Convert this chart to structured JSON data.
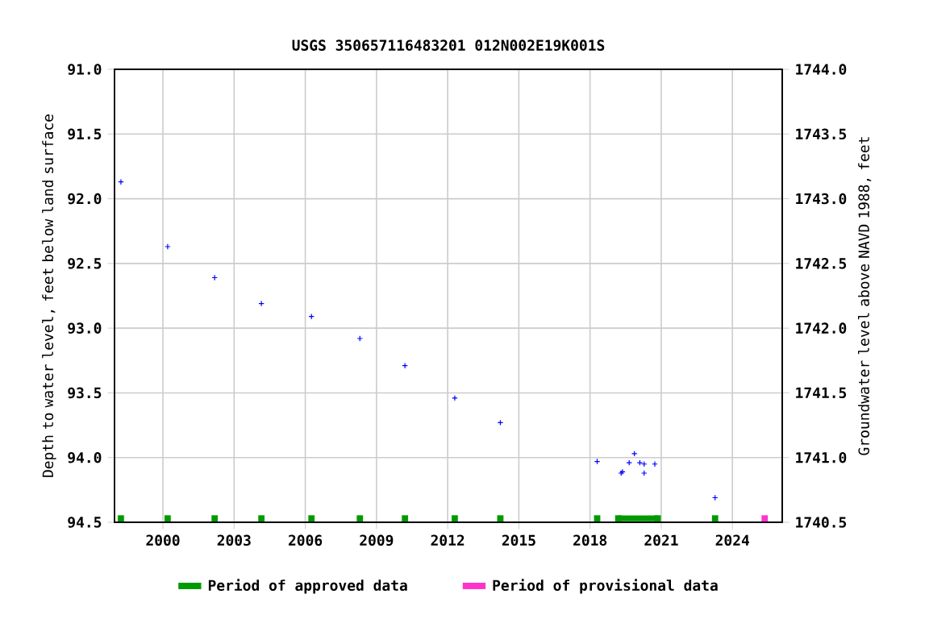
{
  "chart_data": {
    "type": "scatter",
    "title": "USGS 350657116483201 012N002E19K001S",
    "ylabel": "Depth to water level, feet below land surface",
    "y2label": "Groundwater level above NAVD 1988, feet",
    "xlim": [
      1997.96,
      2026.1
    ],
    "xticks": [
      2000,
      2003,
      2006,
      2009,
      2012,
      2015,
      2018,
      2021,
      2024
    ],
    "ylim": [
      94.5,
      91.0
    ],
    "yticks": [
      {
        "value": 91.0,
        "label": "91.0"
      },
      {
        "value": 91.5,
        "label": "91.5"
      },
      {
        "value": 92.0,
        "label": "92.0"
      },
      {
        "value": 92.5,
        "label": "92.5"
      },
      {
        "value": 93.0,
        "label": "93.0"
      },
      {
        "value": 93.5,
        "label": "93.5"
      },
      {
        "value": 94.0,
        "label": "94.0"
      },
      {
        "value": 94.5,
        "label": "94.5"
      }
    ],
    "y2lim": [
      1740.5,
      1744.0
    ],
    "y2ticks": [
      {
        "value": 1740.5,
        "label": "1740.5"
      },
      {
        "value": 1741.0,
        "label": "1741.0"
      },
      {
        "value": 1741.5,
        "label": "1741.5"
      },
      {
        "value": 1742.0,
        "label": "1742.0"
      },
      {
        "value": 1742.5,
        "label": "1742.5"
      },
      {
        "value": 1743.0,
        "label": "1743.0"
      },
      {
        "value": 1743.5,
        "label": "1743.5"
      },
      {
        "value": 1744.0,
        "label": "1744.0"
      }
    ],
    "grid": true,
    "legend": "bottom",
    "marker": "cross",
    "series": [
      {
        "color": "#0000ff",
        "x": [
          1998.23,
          2000.2,
          2002.18,
          2004.15,
          2006.26,
          2008.3,
          2010.2,
          2012.3,
          2014.22,
          2018.3,
          2019.31,
          2019.37,
          2019.65,
          2019.87,
          2020.1,
          2020.28,
          2020.28,
          2020.73,
          2023.27
        ],
        "values": [
          91.87,
          92.37,
          92.61,
          92.81,
          92.91,
          93.08,
          93.29,
          93.54,
          93.73,
          94.03,
          94.12,
          94.11,
          94.04,
          93.97,
          94.04,
          94.05,
          94.12,
          94.05,
          94.31
        ]
      },
      {
        "type": "line",
        "name": "Period of approved data",
        "color": "#009900",
        "marker": "square",
        "x": [
          1998.23,
          null,
          2000.2,
          null,
          2002.18,
          null,
          2004.15,
          null,
          2006.26,
          null,
          2008.3,
          null,
          2010.2,
          null,
          2012.3,
          null,
          2014.22,
          null,
          2018.3,
          null,
          2019.19,
          2020.85,
          null,
          2023.27
        ],
        "values": [
          94.47,
          null,
          94.47,
          null,
          94.47,
          null,
          94.47,
          null,
          94.47,
          null,
          94.47,
          null,
          94.47,
          null,
          94.47,
          null,
          94.47,
          null,
          94.47,
          null,
          94.47,
          94.47,
          null,
          94.47
        ]
      },
      {
        "type": "line",
        "name": "Period of provisional data",
        "color": "#ff33cc",
        "marker": "square",
        "x": [
          2025.36
        ],
        "values": [
          94.47
        ]
      }
    ]
  }
}
